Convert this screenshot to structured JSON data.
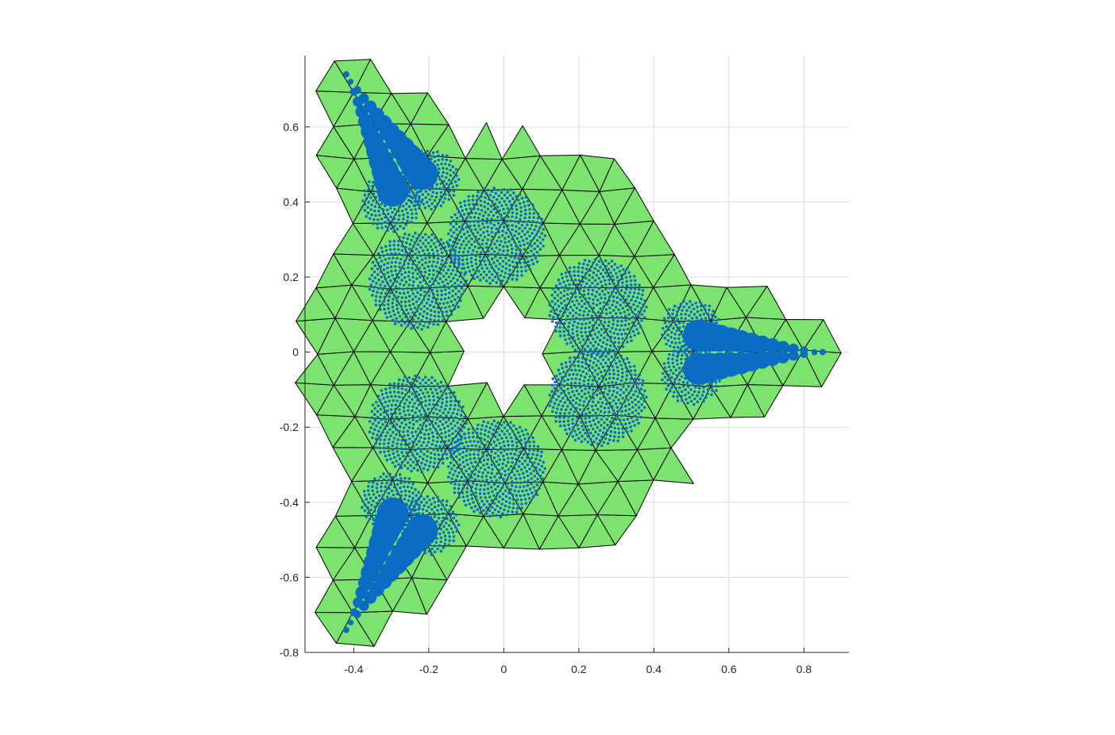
{
  "chart_data": {
    "type": "scatter",
    "title": "",
    "xlabel": "",
    "ylabel": "",
    "xlim": [
      -0.53,
      0.92
    ],
    "ylim": [
      -0.8,
      0.79
    ],
    "xticks": [
      -0.4,
      -0.2,
      0,
      0.2,
      0.4,
      0.6,
      0.8
    ],
    "yticks": [
      -0.8,
      -0.6,
      -0.4,
      -0.2,
      0,
      0.2,
      0.4,
      0.6
    ],
    "xtick_labels": [
      "-0.4",
      "-0.2",
      "0",
      "0.2",
      "0.4",
      "0.6",
      "0.8"
    ],
    "ytick_labels": [
      "-0.8",
      "-0.6",
      "-0.4",
      "-0.2",
      "0",
      "0.2",
      "0.4",
      "0.6"
    ],
    "grid": true,
    "equal_aspect": true,
    "mesh": {
      "element": "equilateral-triangle",
      "spacing": 0.1,
      "center_hole_radius": 0.12,
      "arm_angles_deg": [
        120,
        0,
        240
      ],
      "arm_length": 0.86,
      "arm_start": 0.55,
      "fill_color": "#7de36f",
      "edge_color": "#000000"
    },
    "series": [
      {
        "type": "points",
        "color": "#0b6cc4",
        "disks": [
          {
            "center": [
              0.25,
              0.12
            ],
            "radius": 0.13
          },
          {
            "center": [
              0.25,
              -0.12
            ],
            "radius": 0.13
          },
          {
            "center": [
              -0.23,
              0.19
            ],
            "radius": 0.13
          },
          {
            "center": [
              -0.02,
              0.31
            ],
            "radius": 0.13
          },
          {
            "center": [
              -0.23,
              -0.19
            ],
            "radius": 0.13
          },
          {
            "center": [
              -0.02,
              -0.31
            ],
            "radius": 0.13
          },
          {
            "center": [
              0.5,
              0.06
            ],
            "radius": 0.08
          },
          {
            "center": [
              0.5,
              -0.06
            ],
            "radius": 0.08
          },
          {
            "center": [
              -0.2,
              0.46
            ],
            "radius": 0.08
          },
          {
            "center": [
              -0.3,
              0.4
            ],
            "radius": 0.08
          },
          {
            "center": [
              -0.2,
              -0.46
            ],
            "radius": 0.08
          },
          {
            "center": [
              -0.3,
              -0.4
            ],
            "radius": 0.08
          }
        ],
        "tips": [
          [
            0.85,
            0.0
          ],
          [
            -0.42,
            0.74
          ],
          [
            -0.42,
            -0.74
          ]
        ]
      }
    ]
  }
}
